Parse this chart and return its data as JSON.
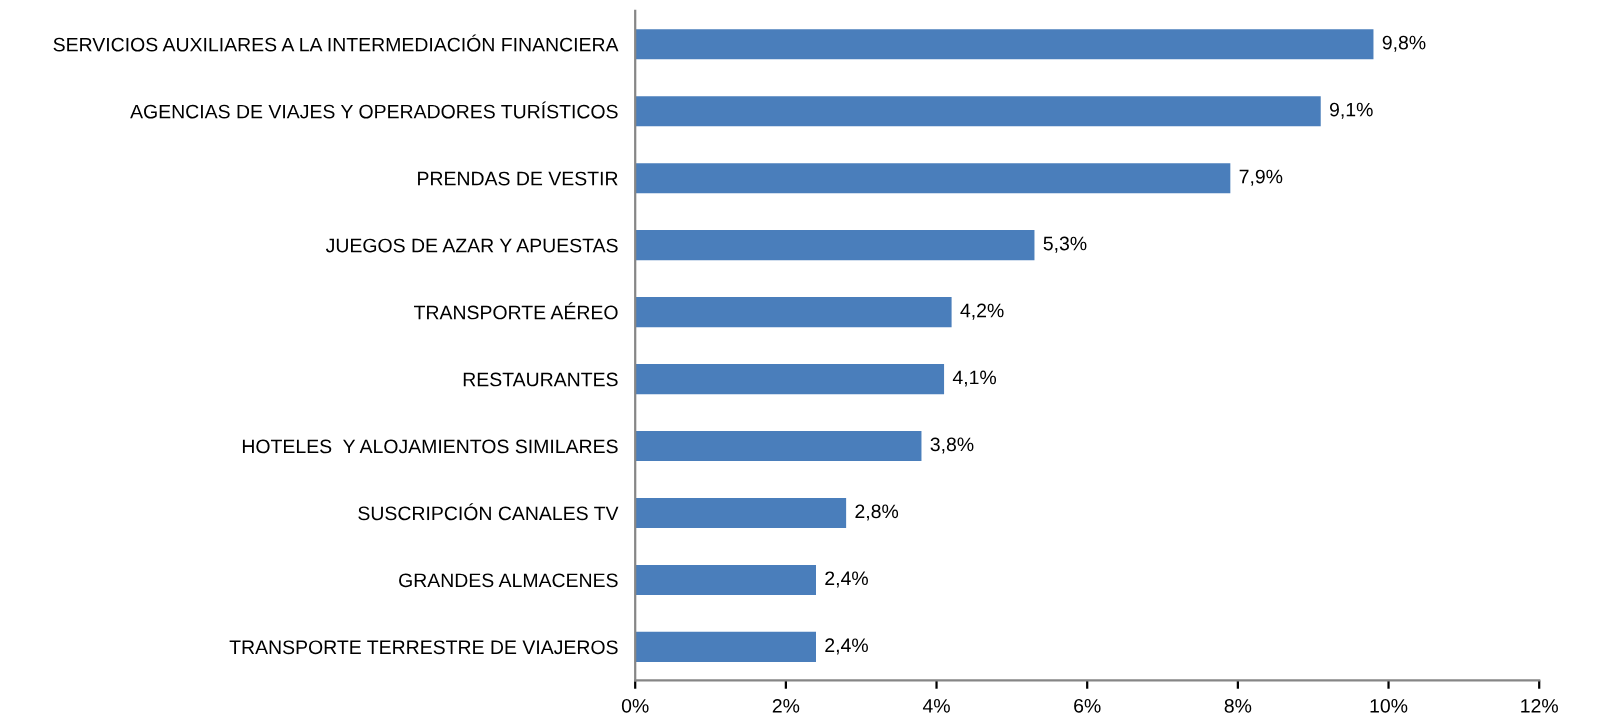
{
  "chart_data": {
    "type": "bar",
    "orientation": "horizontal",
    "categories": [
      "SERVICIOS AUXILIARES A LA INTERMEDIACIÓN FINANCIERA",
      "AGENCIAS DE VIAJES Y OPERADORES TURÍSTICOS",
      "PRENDAS DE VESTIR",
      "JUEGOS DE AZAR Y APUESTAS",
      "TRANSPORTE AÉREO",
      "RESTAURANTES",
      "HOTELES  Y ALOJAMIENTOS SIMILARES",
      "SUSCRIPCIÓN CANALES TV",
      "GRANDES ALMACENES",
      "TRANSPORTE TERRESTRE DE VIAJEROS"
    ],
    "values": [
      9.8,
      9.1,
      7.9,
      5.3,
      4.2,
      4.1,
      3.8,
      2.8,
      2.4,
      2.4
    ],
    "value_labels": [
      "9,8%",
      "9,1%",
      "7,9%",
      "5,3%",
      "4,2%",
      "4,1%",
      "3,8%",
      "2,8%",
      "2,4%",
      "2,4%"
    ],
    "color": "#4a7ebb",
    "xlim": [
      0,
      12
    ],
    "xticks": [
      {
        "value": 0,
        "label": "0%"
      },
      {
        "value": 2,
        "label": "2%"
      },
      {
        "value": 4,
        "label": "4%"
      },
      {
        "value": 6,
        "label": "6%"
      },
      {
        "value": 8,
        "label": "8%"
      },
      {
        "value": 10,
        "label": "10%"
      },
      {
        "value": 12,
        "label": "12%"
      }
    ],
    "grid": false,
    "legend": false
  }
}
